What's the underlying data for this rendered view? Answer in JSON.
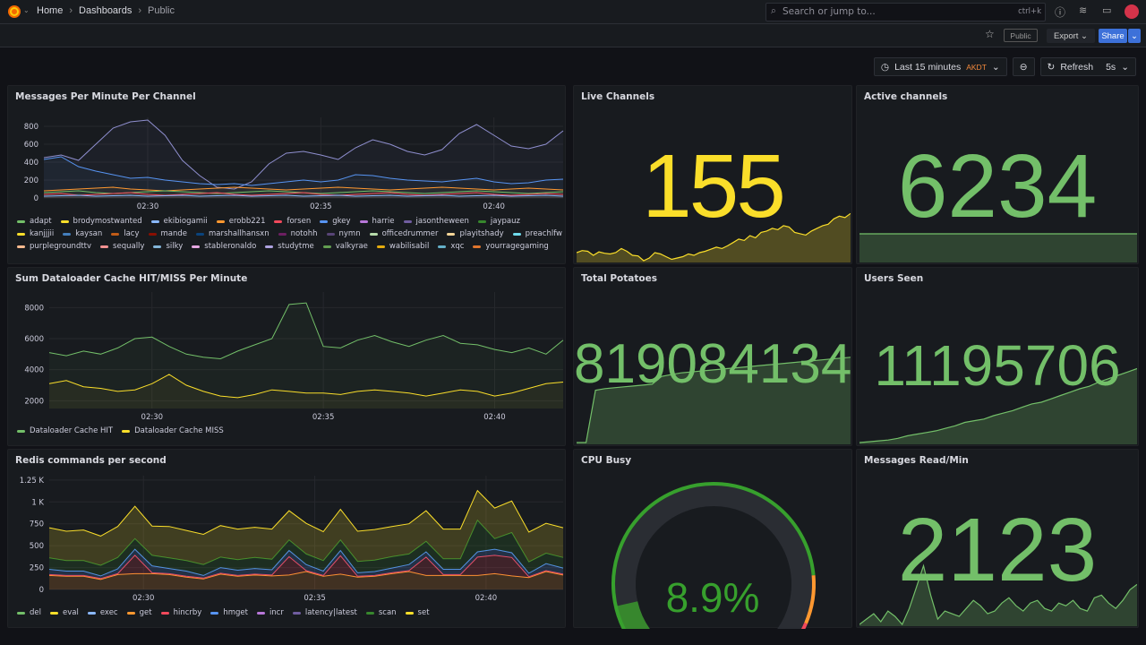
{
  "nav": {
    "breadcrumbs": [
      "Home",
      "Dashboards",
      "Public"
    ],
    "search_placeholder": "Search or jump to...",
    "shortcut": "ctrl+k"
  },
  "toolbar": {
    "public_badge": "Public",
    "export_label": "Export",
    "share_label": "Share",
    "time_range": "Last 15 minutes",
    "timezone": "AKDT",
    "refresh_label": "Refresh",
    "refresh_interval": "5s"
  },
  "colors": {
    "accent": "#3d71d9",
    "green": "#73bf69",
    "yellow": "#fade2a",
    "background": "#111217",
    "panel": "#181b1f"
  },
  "panels": {
    "messages": {
      "title": "Messages Per Minute Per Channel"
    },
    "dataloader": {
      "title": "Sum Dataloader Cache HIT/MISS Per Minute"
    },
    "redis": {
      "title": "Redis commands per second"
    },
    "live": {
      "title": "Live Channels",
      "value": "155",
      "color": "#fade2a"
    },
    "active": {
      "title": "Active channels",
      "value": "6234",
      "color": "#73bf69"
    },
    "potatoes": {
      "title": "Total Potatoes",
      "value": "819084134",
      "color": "#73bf69"
    },
    "users": {
      "title": "Users Seen",
      "value": "11195706",
      "color": "#73bf69"
    },
    "cpu": {
      "title": "CPU Busy",
      "value": "8.9%",
      "percent": 8.9,
      "color": "#37872d"
    },
    "readmin": {
      "title": "Messages Read/Min",
      "value": "2123",
      "color": "#73bf69"
    }
  },
  "chart_data": [
    {
      "id": "messages",
      "type": "line",
      "ylim": [
        0,
        900
      ],
      "yticks": [
        "0",
        "200",
        "400",
        "600",
        "800"
      ],
      "ytick_values": [
        0,
        200,
        400,
        600,
        800
      ],
      "x_range": [
        "02:27",
        "02:42"
      ],
      "xticks": [
        "02:30",
        "02:35",
        "02:40"
      ],
      "series": [
        {
          "name": "nymn",
          "color": "#8f8fcf",
          "values": [
            450,
            480,
            420,
            600,
            780,
            850,
            870,
            700,
            420,
            250,
            120,
            100,
            180,
            380,
            500,
            520,
            480,
            430,
            560,
            650,
            600,
            520,
            480,
            540,
            720,
            820,
            700,
            580,
            550,
            600,
            750
          ]
        },
        {
          "name": "kaysan",
          "color": "#5794f2",
          "values": [
            430,
            460,
            350,
            300,
            260,
            220,
            230,
            200,
            180,
            160,
            150,
            160,
            140,
            160,
            180,
            200,
            180,
            200,
            260,
            250,
            220,
            200,
            190,
            180,
            200,
            220,
            180,
            160,
            170,
            200,
            210
          ]
        },
        {
          "name": "erobb221",
          "color": "#ff9830",
          "values": [
            80,
            90,
            100,
            110,
            120,
            100,
            90,
            80,
            90,
            100,
            110,
            120,
            110,
            100,
            90,
            100,
            110,
            120,
            110,
            100,
            90,
            100,
            110,
            120,
            110,
            100,
            90,
            100,
            110,
            100,
            90
          ]
        },
        {
          "name": "adapt",
          "color": "#73bf69",
          "values": [
            60,
            70,
            80,
            60,
            50,
            60,
            70,
            80,
            70,
            60,
            50,
            60,
            70,
            80,
            70,
            60,
            50,
            60,
            70,
            80,
            70,
            60,
            50,
            60,
            70,
            80,
            70,
            60,
            50,
            60,
            70
          ]
        },
        {
          "name": "forsen",
          "color": "#f2495c",
          "values": [
            40,
            50,
            30,
            40,
            50,
            60,
            40,
            30,
            40,
            50,
            60,
            40,
            30,
            40,
            50,
            60,
            40,
            30,
            40,
            50,
            60,
            40,
            30,
            40,
            50,
            60,
            40,
            30,
            40,
            50,
            40
          ]
        },
        {
          "name": "xqc",
          "color": "#8ab8ff",
          "values": [
            20,
            25,
            30,
            20,
            25,
            30,
            20,
            25,
            30,
            20,
            25,
            30,
            20,
            25,
            30,
            20,
            25,
            30,
            20,
            25,
            30,
            20,
            25,
            30,
            20,
            25,
            30,
            20,
            25,
            30,
            20
          ]
        }
      ],
      "legend": [
        [
          "adapt",
          "#73bf69"
        ],
        [
          "brodymostwanted",
          "#fade2a"
        ],
        [
          "ekibiogamii",
          "#8ab8ff"
        ],
        [
          "erobb221",
          "#ff9830"
        ],
        [
          "forsen",
          "#f2495c"
        ],
        [
          "gkey",
          "#5794f2"
        ],
        [
          "harrie",
          "#b877d9"
        ],
        [
          "jasontheween",
          "#705da0"
        ],
        [
          "jaypauz",
          "#37872d"
        ],
        [
          "kanjjjii",
          "#fade2a"
        ],
        [
          "kaysan",
          "#447ebc"
        ],
        [
          "lacy",
          "#c15c17"
        ],
        [
          "mande",
          "#890f02"
        ],
        [
          "marshallhansxn",
          "#0a437c"
        ],
        [
          "notohh",
          "#6d1f62"
        ],
        [
          "nymn",
          "#584477"
        ],
        [
          "officedrummer",
          "#b7dbab"
        ],
        [
          "playitshady",
          "#f4d598"
        ],
        [
          "preachlfw",
          "#70dbed"
        ],
        [
          "purplegroundttv",
          "#f9ba8f"
        ],
        [
          "sequally",
          "#f29191"
        ],
        [
          "silky",
          "#82b5d8"
        ],
        [
          "stableronaldo",
          "#e5a8e2"
        ],
        [
          "studytme",
          "#aea2e0"
        ],
        [
          "valkyrae",
          "#629e51"
        ],
        [
          "wabilisabil",
          "#e5ac0e"
        ],
        [
          "xqc",
          "#64b0c8"
        ],
        [
          "yourragegaming",
          "#e0752d"
        ]
      ]
    },
    {
      "id": "dataloader",
      "type": "line",
      "ylim": [
        1500,
        9000
      ],
      "yticks": [
        "2000",
        "4000",
        "6000",
        "8000"
      ],
      "ytick_values": [
        2000,
        4000,
        6000,
        8000
      ],
      "x_range": [
        "02:27",
        "02:42"
      ],
      "xticks": [
        "02:30",
        "02:35",
        "02:40"
      ],
      "series": [
        {
          "name": "Dataloader Cache HIT",
          "color": "#73bf69",
          "values": [
            5100,
            4900,
            5200,
            5000,
            5400,
            6000,
            6100,
            5500,
            5000,
            4800,
            4700,
            5200,
            5600,
            6000,
            8200,
            8300,
            5500,
            5400,
            5900,
            6200,
            5800,
            5500,
            5900,
            6200,
            5700,
            5600,
            5300,
            5100,
            5400,
            5000,
            5900
          ]
        },
        {
          "name": "Dataloader Cache MISS",
          "color": "#fade2a",
          "values": [
            3100,
            3300,
            2900,
            2800,
            2600,
            2700,
            3100,
            3700,
            3000,
            2600,
            2300,
            2200,
            2400,
            2700,
            2600,
            2500,
            2500,
            2400,
            2600,
            2700,
            2600,
            2500,
            2300,
            2500,
            2700,
            2600,
            2300,
            2500,
            2800,
            3100,
            3200
          ]
        }
      ],
      "legend": [
        [
          "Dataloader Cache HIT",
          "#73bf69"
        ],
        [
          "Dataloader Cache MISS",
          "#fade2a"
        ]
      ]
    },
    {
      "id": "redis",
      "type": "area",
      "stacked": true,
      "ylim": [
        0,
        1300
      ],
      "yticks": [
        "0",
        "250",
        "500",
        "750",
        "1 K",
        "1.25 K"
      ],
      "ytick_values": [
        0,
        250,
        500,
        750,
        1000,
        1250
      ],
      "x_range": [
        "02:27:15",
        "02:42:15"
      ],
      "xticks": [
        "02:30",
        "02:35",
        "02:40"
      ],
      "series": [
        {
          "name": "get",
          "color": "#ff9830",
          "values": [
            160,
            150,
            150,
            115,
            170,
            180,
            180,
            170,
            140,
            120,
            175,
            150,
            165,
            155,
            165,
            205,
            150,
            175,
            140,
            150,
            180,
            205,
            160,
            160,
            160,
            160,
            180,
            155,
            135,
            205,
            165
          ]
        },
        {
          "name": "hincrby",
          "color": "#f2495c",
          "values": [
            10,
            10,
            10,
            10,
            10,
            210,
            10,
            10,
            10,
            10,
            10,
            10,
            10,
            10,
            210,
            10,
            10,
            210,
            10,
            10,
            10,
            10,
            210,
            10,
            10,
            210,
            210,
            210,
            10,
            10,
            10
          ]
        },
        {
          "name": "hmget",
          "color": "#5794f2",
          "values": [
            60,
            50,
            50,
            30,
            55,
            70,
            80,
            60,
            60,
            30,
            65,
            60,
            65,
            60,
            70,
            70,
            50,
            60,
            40,
            45,
            55,
            70,
            60,
            60,
            60,
            60,
            70,
            55,
            40,
            80,
            70
          ]
        },
        {
          "name": "scan",
          "color": "#37872d",
          "values": [
            130,
            120,
            120,
            120,
            130,
            120,
            120,
            120,
            120,
            125,
            120,
            120,
            125,
            120,
            120,
            120,
            120,
            120,
            130,
            130,
            130,
            120,
            120,
            120,
            120,
            360,
            120,
            230,
            130,
            120,
            120
          ]
        },
        {
          "name": "set",
          "color": "#fade2a",
          "values": [
            345,
            335,
            350,
            335,
            355,
            370,
            335,
            360,
            345,
            345,
            360,
            350,
            345,
            345,
            335,
            350,
            330,
            350,
            345,
            350,
            345,
            345,
            350,
            340,
            340,
            340,
            350,
            360,
            340,
            340,
            340
          ]
        }
      ],
      "legend": [
        [
          "del",
          "#73bf69"
        ],
        [
          "eval",
          "#fade2a"
        ],
        [
          "exec",
          "#8ab8ff"
        ],
        [
          "get",
          "#ff9830"
        ],
        [
          "hincrby",
          "#f2495c"
        ],
        [
          "hmget",
          "#5794f2"
        ],
        [
          "incr",
          "#b877d9"
        ],
        [
          "latency|latest",
          "#705da0"
        ],
        [
          "scan",
          "#37872d"
        ],
        [
          "set",
          "#fade2a"
        ]
      ]
    },
    {
      "id": "live_spark",
      "type": "area",
      "values": [
        30,
        33,
        32,
        26,
        31,
        29,
        28,
        30,
        36,
        32,
        26,
        25,
        18,
        22,
        30,
        28,
        24,
        20,
        22,
        24,
        28,
        26,
        30,
        32,
        35,
        38,
        36,
        40,
        45,
        50,
        48,
        55,
        52,
        60,
        62,
        66,
        64,
        70,
        68,
        60,
        58,
        56,
        62,
        66,
        70,
        72,
        80,
        84,
        82,
        88
      ]
    },
    {
      "id": "active_spark",
      "type": "area",
      "values": [
        50,
        50,
        50,
        50,
        50,
        50,
        50,
        50,
        50,
        50
      ]
    },
    {
      "id": "potatoes_spark",
      "type": "area",
      "values": [
        0,
        0,
        60,
        62,
        63,
        64,
        65,
        66,
        67,
        76,
        78,
        80,
        81,
        82,
        83,
        84,
        85,
        86,
        87,
        88,
        89,
        90,
        91,
        92,
        93,
        94,
        95,
        96,
        97,
        98
      ]
    },
    {
      "id": "users_spark",
      "type": "area",
      "values": [
        0,
        1,
        2,
        3,
        5,
        8,
        10,
        12,
        14,
        17,
        20,
        24,
        26,
        28,
        32,
        35,
        38,
        42,
        46,
        48,
        52,
        56,
        60,
        64,
        67,
        72,
        76,
        80,
        84,
        88
      ]
    },
    {
      "id": "readmin_spark",
      "type": "area",
      "values": [
        30,
        34,
        38,
        32,
        40,
        36,
        30,
        42,
        58,
        74,
        52,
        34,
        40,
        38,
        36,
        42,
        48,
        44,
        38,
        40,
        46,
        50,
        44,
        40,
        46,
        48,
        42,
        40,
        46,
        44,
        48,
        42,
        40,
        50,
        52,
        46,
        42,
        48,
        56,
        60
      ]
    }
  ]
}
